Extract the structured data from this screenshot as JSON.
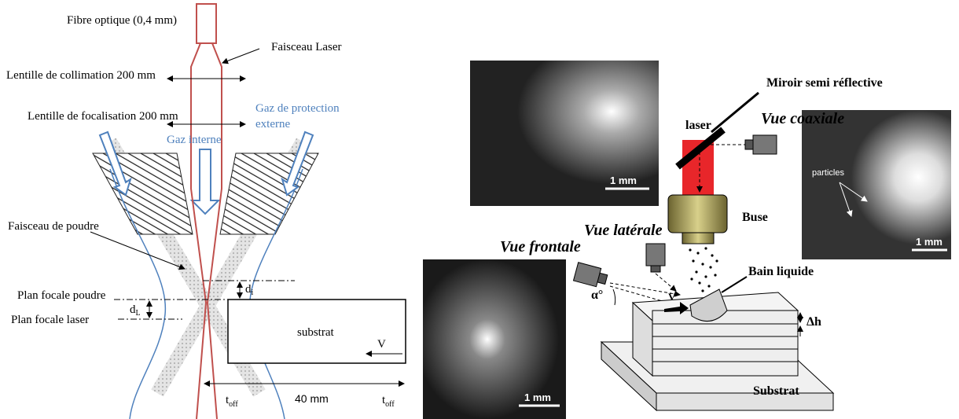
{
  "left_diagram": {
    "fibre": "Fibre optique (0,4 mm)",
    "laser_beam": "Faisceau Laser",
    "collimation_lens": "Lentille de collimation 200 mm",
    "focusing_lens": "Lentille de focalisation 200 mm",
    "external_gas": [
      "Gaz de protection",
      "externe"
    ],
    "internal_gas": "Gaz interne",
    "powder_beam": "Faisceau de poudre",
    "powder_focal_plane": "Plan focale poudre",
    "laser_focal_plane": "Plan focale laser",
    "d_l": {
      "symbol": "d",
      "subscript": "L"
    },
    "d_i": {
      "symbol": "d",
      "subscript": "i"
    },
    "substrate": "substrat",
    "speed": "V",
    "t_off_start": {
      "symbol": "t",
      "subscript": "off"
    },
    "distance": "40 mm",
    "t_off_end": {
      "symbol": "t",
      "subscript": "off"
    }
  },
  "right_diagram": {
    "mirror": "Miroir semi réflective",
    "laser": "laser",
    "coaxial_view": "Vue coaxiale",
    "lateral_view": "Vue latérale",
    "front_view": "Vue frontale",
    "nozzle": "Buse",
    "melt_pool": "Bain liquide",
    "angle": "α°",
    "speed": "V",
    "layer_height": "Δh",
    "substrate": "Substrat",
    "photos": [
      {
        "scale": "1 mm"
      },
      {
        "scale": "1 mm",
        "annotation": "particles"
      },
      {
        "scale": "1 mm"
      }
    ]
  }
}
